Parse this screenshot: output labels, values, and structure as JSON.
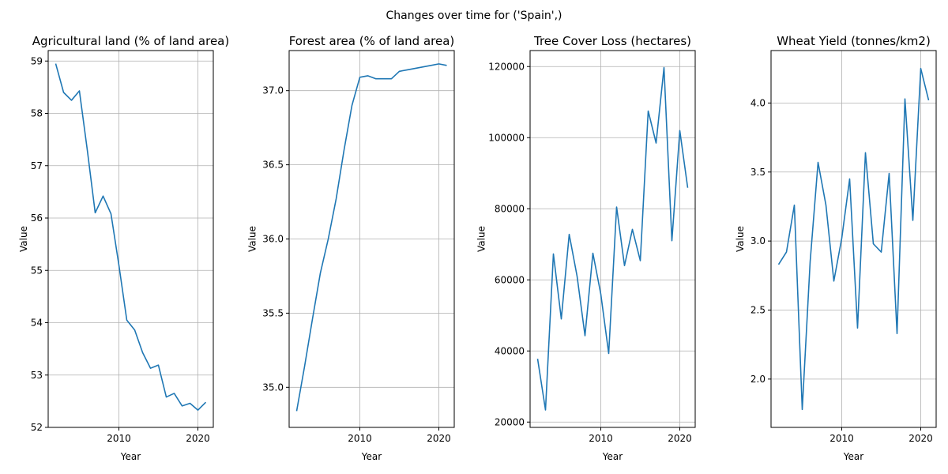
{
  "figure_title": "Changes over time for ('Spain',)",
  "chart_data": [
    {
      "type": "line",
      "title": "Agricultural land (% of land area)",
      "xlabel": "Year",
      "ylabel": "Value",
      "xlim": [
        2001.05,
        2021.95
      ],
      "ylim": [
        52.0,
        59.2
      ],
      "xticks": [
        2010,
        2020
      ],
      "yticks": [
        52,
        53,
        54,
        55,
        56,
        57,
        58,
        59
      ],
      "grid": true,
      "series": [
        {
          "color": "#1f77b4",
          "x": [
            2002,
            2003,
            2004,
            2005,
            2006,
            2007,
            2008,
            2009,
            2010,
            2011,
            2012,
            2013,
            2014,
            2015,
            2016,
            2017,
            2018,
            2019,
            2020,
            2021
          ],
          "y": [
            58.95,
            58.4,
            58.25,
            58.43,
            57.3,
            56.1,
            56.42,
            56.08,
            55.1,
            54.05,
            53.86,
            53.43,
            53.13,
            53.19,
            52.58,
            52.65,
            52.41,
            52.46,
            52.33,
            52.48
          ]
        }
      ]
    },
    {
      "type": "line",
      "title": "Forest area (% of land area)",
      "xlabel": "Year",
      "ylabel": "Value",
      "xlim": [
        2001.05,
        2021.95
      ],
      "ylim": [
        34.73,
        37.27
      ],
      "xticks": [
        2010,
        2020
      ],
      "yticks": [
        35.0,
        35.5,
        36.0,
        36.5,
        37.0
      ],
      "ytick_labels": [
        "35.0",
        "35.5",
        "36.0",
        "36.5",
        "37.0"
      ],
      "grid": true,
      "series": [
        {
          "color": "#1f77b4",
          "x": [
            2002,
            2003,
            2004,
            2005,
            2006,
            2007,
            2008,
            2009,
            2010,
            2011,
            2012,
            2013,
            2014,
            2015,
            2016,
            2017,
            2018,
            2019,
            2020,
            2021
          ],
          "y": [
            34.84,
            35.14,
            35.46,
            35.77,
            36.0,
            36.27,
            36.6,
            36.9,
            37.09,
            37.1,
            37.08,
            37.08,
            37.08,
            37.13,
            37.14,
            37.15,
            37.16,
            37.17,
            37.18,
            37.17
          ]
        }
      ]
    },
    {
      "type": "line",
      "title": "Tree Cover Loss (hectares)",
      "xlabel": "Year",
      "ylabel": "Value",
      "xlim": [
        2001.05,
        2021.95
      ],
      "ylim": [
        18500,
        124500
      ],
      "xticks": [
        2010,
        2020
      ],
      "yticks": [
        20000,
        40000,
        60000,
        80000,
        100000,
        120000
      ],
      "grid": true,
      "series": [
        {
          "color": "#1f77b4",
          "x": [
            2002,
            2003,
            2004,
            2005,
            2006,
            2007,
            2008,
            2009,
            2010,
            2011,
            2012,
            2013,
            2014,
            2015,
            2016,
            2017,
            2018,
            2019,
            2020,
            2021
          ],
          "y": [
            37800,
            23400,
            67300,
            49000,
            72800,
            61000,
            44300,
            67500,
            56000,
            39300,
            80500,
            64000,
            74200,
            65400,
            107500,
            98500,
            119700,
            71000,
            102000,
            85900
          ]
        }
      ]
    },
    {
      "type": "line",
      "title": "Wheat Yield (tonnes/km2)",
      "xlabel": "Year",
      "ylabel": "Value",
      "xlim": [
        2001.05,
        2021.95
      ],
      "ylim": [
        1.65,
        4.38
      ],
      "xticks": [
        2010,
        2020
      ],
      "yticks": [
        2.0,
        2.5,
        3.0,
        3.5,
        4.0
      ],
      "ytick_labels": [
        "2.0",
        "2.5",
        "3.0",
        "3.5",
        "4.0"
      ],
      "grid": true,
      "series": [
        {
          "color": "#1f77b4",
          "x": [
            2002,
            2003,
            2004,
            2005,
            2006,
            2007,
            2008,
            2009,
            2010,
            2011,
            2012,
            2013,
            2014,
            2015,
            2016,
            2017,
            2018,
            2019,
            2020,
            2021
          ],
          "y": [
            2.83,
            2.92,
            3.26,
            1.78,
            2.85,
            3.57,
            3.26,
            2.71,
            3.02,
            3.45,
            2.37,
            3.64,
            2.98,
            2.92,
            3.49,
            2.33,
            4.03,
            3.15,
            4.25,
            4.02
          ]
        }
      ]
    }
  ]
}
